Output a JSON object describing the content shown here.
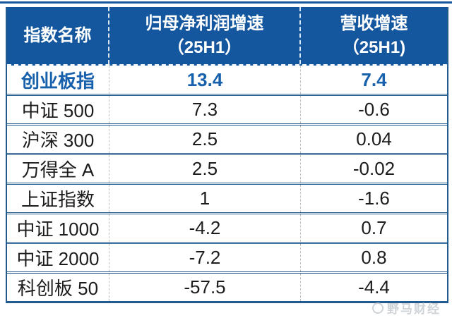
{
  "colors": {
    "header_bg": "#14579E",
    "header_text": "#ffffff",
    "border_blue": "#245B8F",
    "highlight_text": "#1660AC",
    "row_text": "#1c1c1c",
    "column_divider_gray": "#bfbfbf",
    "watermark_gray": "#c3c9cf"
  },
  "table": {
    "columns": [
      {
        "label": "指数名称",
        "sub": ""
      },
      {
        "label": "归母净利润增速",
        "sub": "（25H1）"
      },
      {
        "label": "营收增速",
        "sub": "（25H1)"
      }
    ],
    "rows": [
      {
        "name": "创业板指",
        "profit": "13.4",
        "revenue": "7.4"
      },
      {
        "name": "中证 500",
        "profit": "7.3",
        "revenue": "-0.6"
      },
      {
        "name": "沪深 300",
        "profit": "2.5",
        "revenue": "0.04"
      },
      {
        "name": "万得全 A",
        "profit": "2.5",
        "revenue": "-0.02"
      },
      {
        "name": "上证指数",
        "profit": "1",
        "revenue": "-1.6"
      },
      {
        "name": "中证 1000",
        "profit": "-4.2",
        "revenue": "0.7"
      },
      {
        "name": "中证 2000",
        "profit": "-7.2",
        "revenue": "0.8"
      },
      {
        "name": "科创板 50",
        "profit": "-57.5",
        "revenue": "-4.4"
      }
    ]
  },
  "watermark": {
    "text": "野马财经"
  }
}
